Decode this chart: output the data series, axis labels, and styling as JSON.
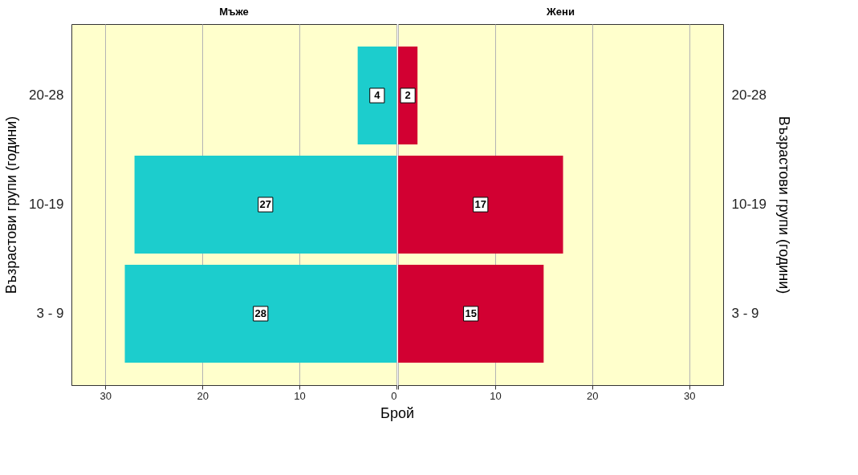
{
  "chart_data": [
    {
      "type": "bar",
      "orientation": "horizontal",
      "title": "Мъже",
      "xlabel": "Брой",
      "ylabel": "Възрастови групи (години)",
      "categories": [
        "20-28",
        "10-19",
        "3 - 9"
      ],
      "series": [
        {
          "color": "#1ccdcd",
          "values": [
            4,
            27,
            28
          ]
        }
      ],
      "xlim": [
        33.5,
        0
      ],
      "xticks": [
        30,
        20,
        10,
        0
      ],
      "grid": "x",
      "data_labels": true
    },
    {
      "type": "bar",
      "orientation": "horizontal",
      "title": "Жени",
      "ylabel": "Възрастови групи (години)",
      "categories": [
        "20-28",
        "10-19",
        "3 - 9"
      ],
      "series": [
        {
          "color": "#d20032",
          "values": [
            2,
            17,
            15
          ]
        }
      ],
      "xlim": [
        0,
        33.5
      ],
      "xticks": [
        {
          "value": 0,
          "label": null
        },
        10,
        20,
        30
      ],
      "grid": "x",
      "data_labels": true
    }
  ]
}
